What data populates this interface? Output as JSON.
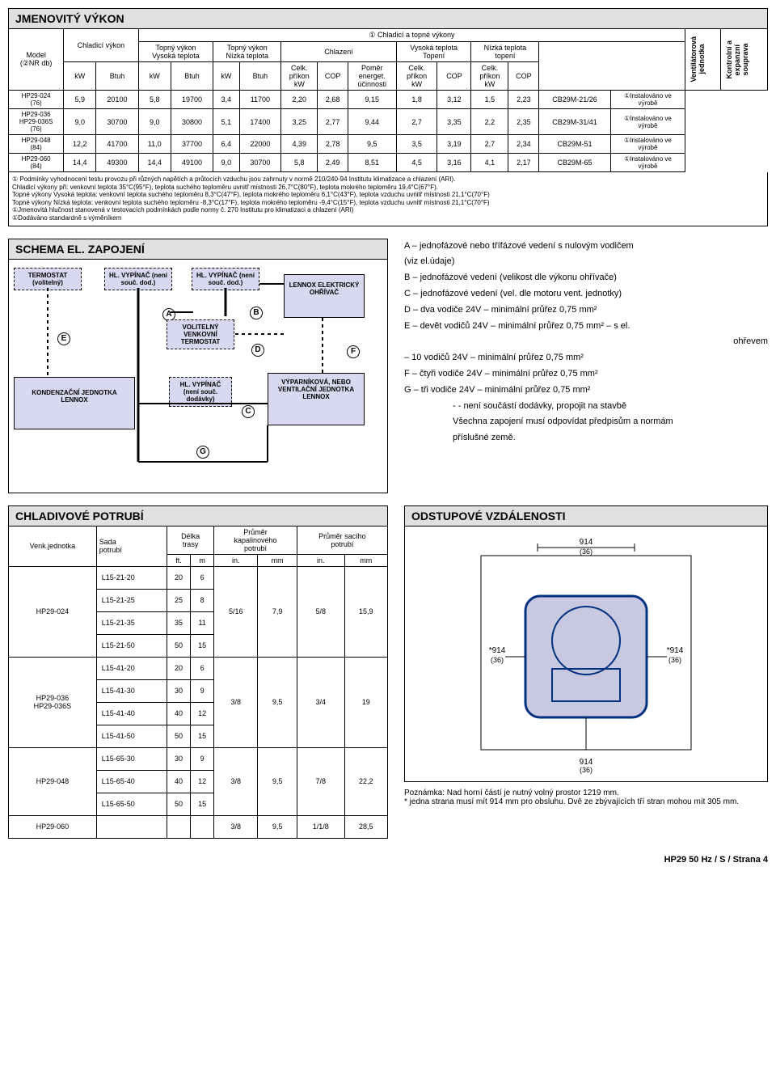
{
  "section1": {
    "title": "JMENOVITÝ VÝKON",
    "headers": {
      "model": "Model\n(②NR db)",
      "cool_cap": "Chladicí výkon",
      "heat_topny": "① Chladicí a topné výkony",
      "heat_high": "Topný výkon\nVysoká teplota",
      "heat_low": "Topný výkon\nNízká teplota",
      "cooling": "Chlazení",
      "high_temp": "Vysoká teplota\nTopení",
      "low_temp": "Nízká teplota\ntopení",
      "celk_prikon": "Celk.\npříkon\nkW",
      "cop": "COP",
      "pomer": "Poměr\nenerget.\núčinnosti",
      "kw": "kW",
      "btuh": "Btuh",
      "fan_unit": "Ventilátorová\njednotka",
      "control": "Kontrolní a\nexpanzní\nsouprava"
    },
    "rows": [
      {
        "model": "HP29-024\n(76)",
        "c_kw": "5,9",
        "c_btuh": "20100",
        "hh_kw": "5,8",
        "hh_btuh": "19700",
        "hl_kw": "3,4",
        "hl_btuh": "11700",
        "cool_p": "2,20",
        "cool_cop": "2,68",
        "cool_eer": "9,15",
        "ht_p": "1,8",
        "ht_cop": "3,12",
        "lt_p": "1,5",
        "lt_cop": "2,23",
        "fan": "CB29M-21/26",
        "ctrl": "①Instalováno ve\nvýrobě"
      },
      {
        "model": "HP29-036\nHP29-036S\n(76)",
        "c_kw": "9,0",
        "c_btuh": "30700",
        "hh_kw": "9,0",
        "hh_btuh": "30800",
        "hl_kw": "5,1",
        "hl_btuh": "17400",
        "cool_p": "3,25",
        "cool_cop": "2,77",
        "cool_eer": "9,44",
        "ht_p": "2,7",
        "ht_cop": "3,35",
        "lt_p": "2,2",
        "lt_cop": "2,35",
        "fan": "CB29M-31/41",
        "ctrl": "①Instalováno ve\nvýrobě"
      },
      {
        "model": "HP29-048\n(84)",
        "c_kw": "12,2",
        "c_btuh": "41700",
        "hh_kw": "11,0",
        "hh_btuh": "37700",
        "hl_kw": "6,4",
        "hl_btuh": "22000",
        "cool_p": "4,39",
        "cool_cop": "2,78",
        "cool_eer": "9,5",
        "ht_p": "3,5",
        "ht_cop": "3,19",
        "lt_p": "2,7",
        "lt_cop": "2,34",
        "fan": "CB29M-51",
        "ctrl": "①Instalováno ve\nvýrobě"
      },
      {
        "model": "HP29-060\n(84)",
        "c_kw": "14,4",
        "c_btuh": "49300",
        "hh_kw": "14,4",
        "hh_btuh": "49100",
        "hl_kw": "9,0",
        "hl_btuh": "30700",
        "cool_p": "5,8",
        "cool_cop": "2,49",
        "cool_eer": "8,51",
        "ht_p": "4,5",
        "ht_cop": "3,16",
        "lt_p": "4,1",
        "lt_cop": "2,17",
        "fan": "CB29M-65",
        "ctrl": "①Instalováno ve\nvýrobě"
      }
    ],
    "footnotes": [
      "① Podmínky vyhodnocení testu provozu při různých napětích a průtocích vzduchu jsou zahrnuty v normě 210/240-94 Institutu klimatizace a chlazení (ARI).",
      "Chladicí výkony při: venkovní teplota 35°C(95°F), teplota suchého teploměru uvnitř místnosti 26,7°C(80°F), teplota mokrého teploměru 19,4°C(67°F).",
      "Topné výkony Vysoká teplota: venkovní teplota suchého teploměru 8,3°C(47°F), teplota mokrého teploměru 6,1°C(43°F), teplota vzduchu uvnitř místnosti 21,1°C(70°F)",
      "Topné výkony Nízká teplota: venkovní teplota suchého teploměru -8,3°C(17°F), teplota mokrého teploměru -9,4°C(15°F), teplota vzduchu uvnitř místnosti 21,1°C(70°F)",
      "①Jmenovitá hlučnost stanovená v testovacích podmínkách podle normy č. 270 Institutu pro klimatizaci a chlazení (ARI)",
      "①Dodáváno standardně s výměníkem"
    ]
  },
  "schema": {
    "title": "SCHEMA EL. ZAPOJENÍ",
    "boxes": {
      "thermo": "TERMOSTAT\n(volitelný)",
      "sw1": "HL. VYPÍNAČ\n(není souč. dod.)",
      "sw2": "HL. VYPÍNAČ\n(není souč. dod.)",
      "lennox_heater": "LENNOX\nELEKTRICKÝ\nOHŘÍVAČ",
      "optional_thermo": "VOLITELNÝ\nVENKOVNÍ\nTERMOSTAT",
      "cond_unit": "KONDENZAČNÍ\nJEDNOTKA\nLENNOX",
      "sw3": "HL. VYPÍNAČ\n(není souč.\ndodávky)",
      "evap_unit": "VÝPARNÍKOVÁ,\nNEBO VENTILAČNÍ\nJEDNOTKA\nLENNOX"
    },
    "legend": [
      "A – jednofázové nebo třífázové vedení s nulovým vodičem",
      "(viz el.údaje)",
      "B – jednofázové vedení (velikost dle výkonu ohřívače)",
      "C – jednofázové vedení (vel. dle motoru vent. jednotky)",
      "D – dva vodiče 24V – minimální průřez 0,75 mm²",
      "E – devět vodičů 24V – minimální průřez 0,75 mm² – s el.",
      "ohřevem",
      "– 10 vodičů 24V – minimální průřez 0,75 mm²",
      "F – čtyři vodiče 24V – minimální průřez 0,75 mm²",
      "G – tři vodiče 24V – minimální průřez 0,75 mm²",
      "- - není součástí dodávky, propojit na stavbě",
      "Všechna zapojení musí odpovídat předpisům a normám",
      "příslušné země."
    ]
  },
  "piping": {
    "title": "CHLADIVOVÉ POTRUBÍ",
    "headers": {
      "unit": "Venk.jednotka",
      "kit": "Sada\npotrubí",
      "length": "Délka\ntrasy",
      "liquid": "Průměr\nkapalinového\npotrubí",
      "suction": "Průměr sacího\npotrubí",
      "ft": "ft.",
      "m": "m",
      "in": "in.",
      "mm": "mm"
    },
    "rows": [
      {
        "unit": "HP29-024",
        "kit": "L15-21-20",
        "ft": "20",
        "m": "6",
        "liq_in": "5/16",
        "liq_mm": "7,9",
        "suc_in": "5/8",
        "suc_mm": "15,9",
        "span": 4
      },
      {
        "unit": "",
        "kit": "L15-21-25",
        "ft": "25",
        "m": "8"
      },
      {
        "unit": "",
        "kit": "L15-21-35",
        "ft": "35",
        "m": "11"
      },
      {
        "unit": "",
        "kit": "L15-21-50",
        "ft": "50",
        "m": "15"
      },
      {
        "unit": "HP29-036\nHP29-036S",
        "kit": "L15-41-20",
        "ft": "20",
        "m": "6",
        "liq_in": "3/8",
        "liq_mm": "9,5",
        "suc_in": "3/4",
        "suc_mm": "19",
        "span": 4
      },
      {
        "unit": "",
        "kit": "L15-41-30",
        "ft": "30",
        "m": "9"
      },
      {
        "unit": "",
        "kit": "L15-41-40",
        "ft": "40",
        "m": "12"
      },
      {
        "unit": "",
        "kit": "L15-41-50",
        "ft": "50",
        "m": "15"
      },
      {
        "unit": "HP29-048",
        "kit": "L15-65-30",
        "ft": "30",
        "m": "9",
        "liq_in": "3/8",
        "liq_mm": "9,5",
        "suc_in": "7/8",
        "suc_mm": "22,2",
        "span": 3
      },
      {
        "unit": "",
        "kit": "L15-65-40",
        "ft": "40",
        "m": "12"
      },
      {
        "unit": "",
        "kit": "L15-65-50",
        "ft": "50",
        "m": "15"
      },
      {
        "unit": "HP29-060",
        "kit": "",
        "ft": "",
        "m": "",
        "liq_in": "3/8",
        "liq_mm": "9,5",
        "suc_in": "1/1/8",
        "suc_mm": "28,5",
        "span": 1
      }
    ]
  },
  "clearance": {
    "title": "ODSTUPOVÉ VZDÁLENOSTI",
    "dims": {
      "d914": "914",
      "d36": "(36)",
      "dstar": "*914"
    },
    "note": "Poznámka: Nad horní částí je nutný volný prostor 1219 mm.\n* jedna strana musí mít 914 mm pro obsluhu. Dvě ze zbývajících tří stran mohou mít 305 mm."
  },
  "footer": "HP29 50 Hz / S / Strana 4"
}
